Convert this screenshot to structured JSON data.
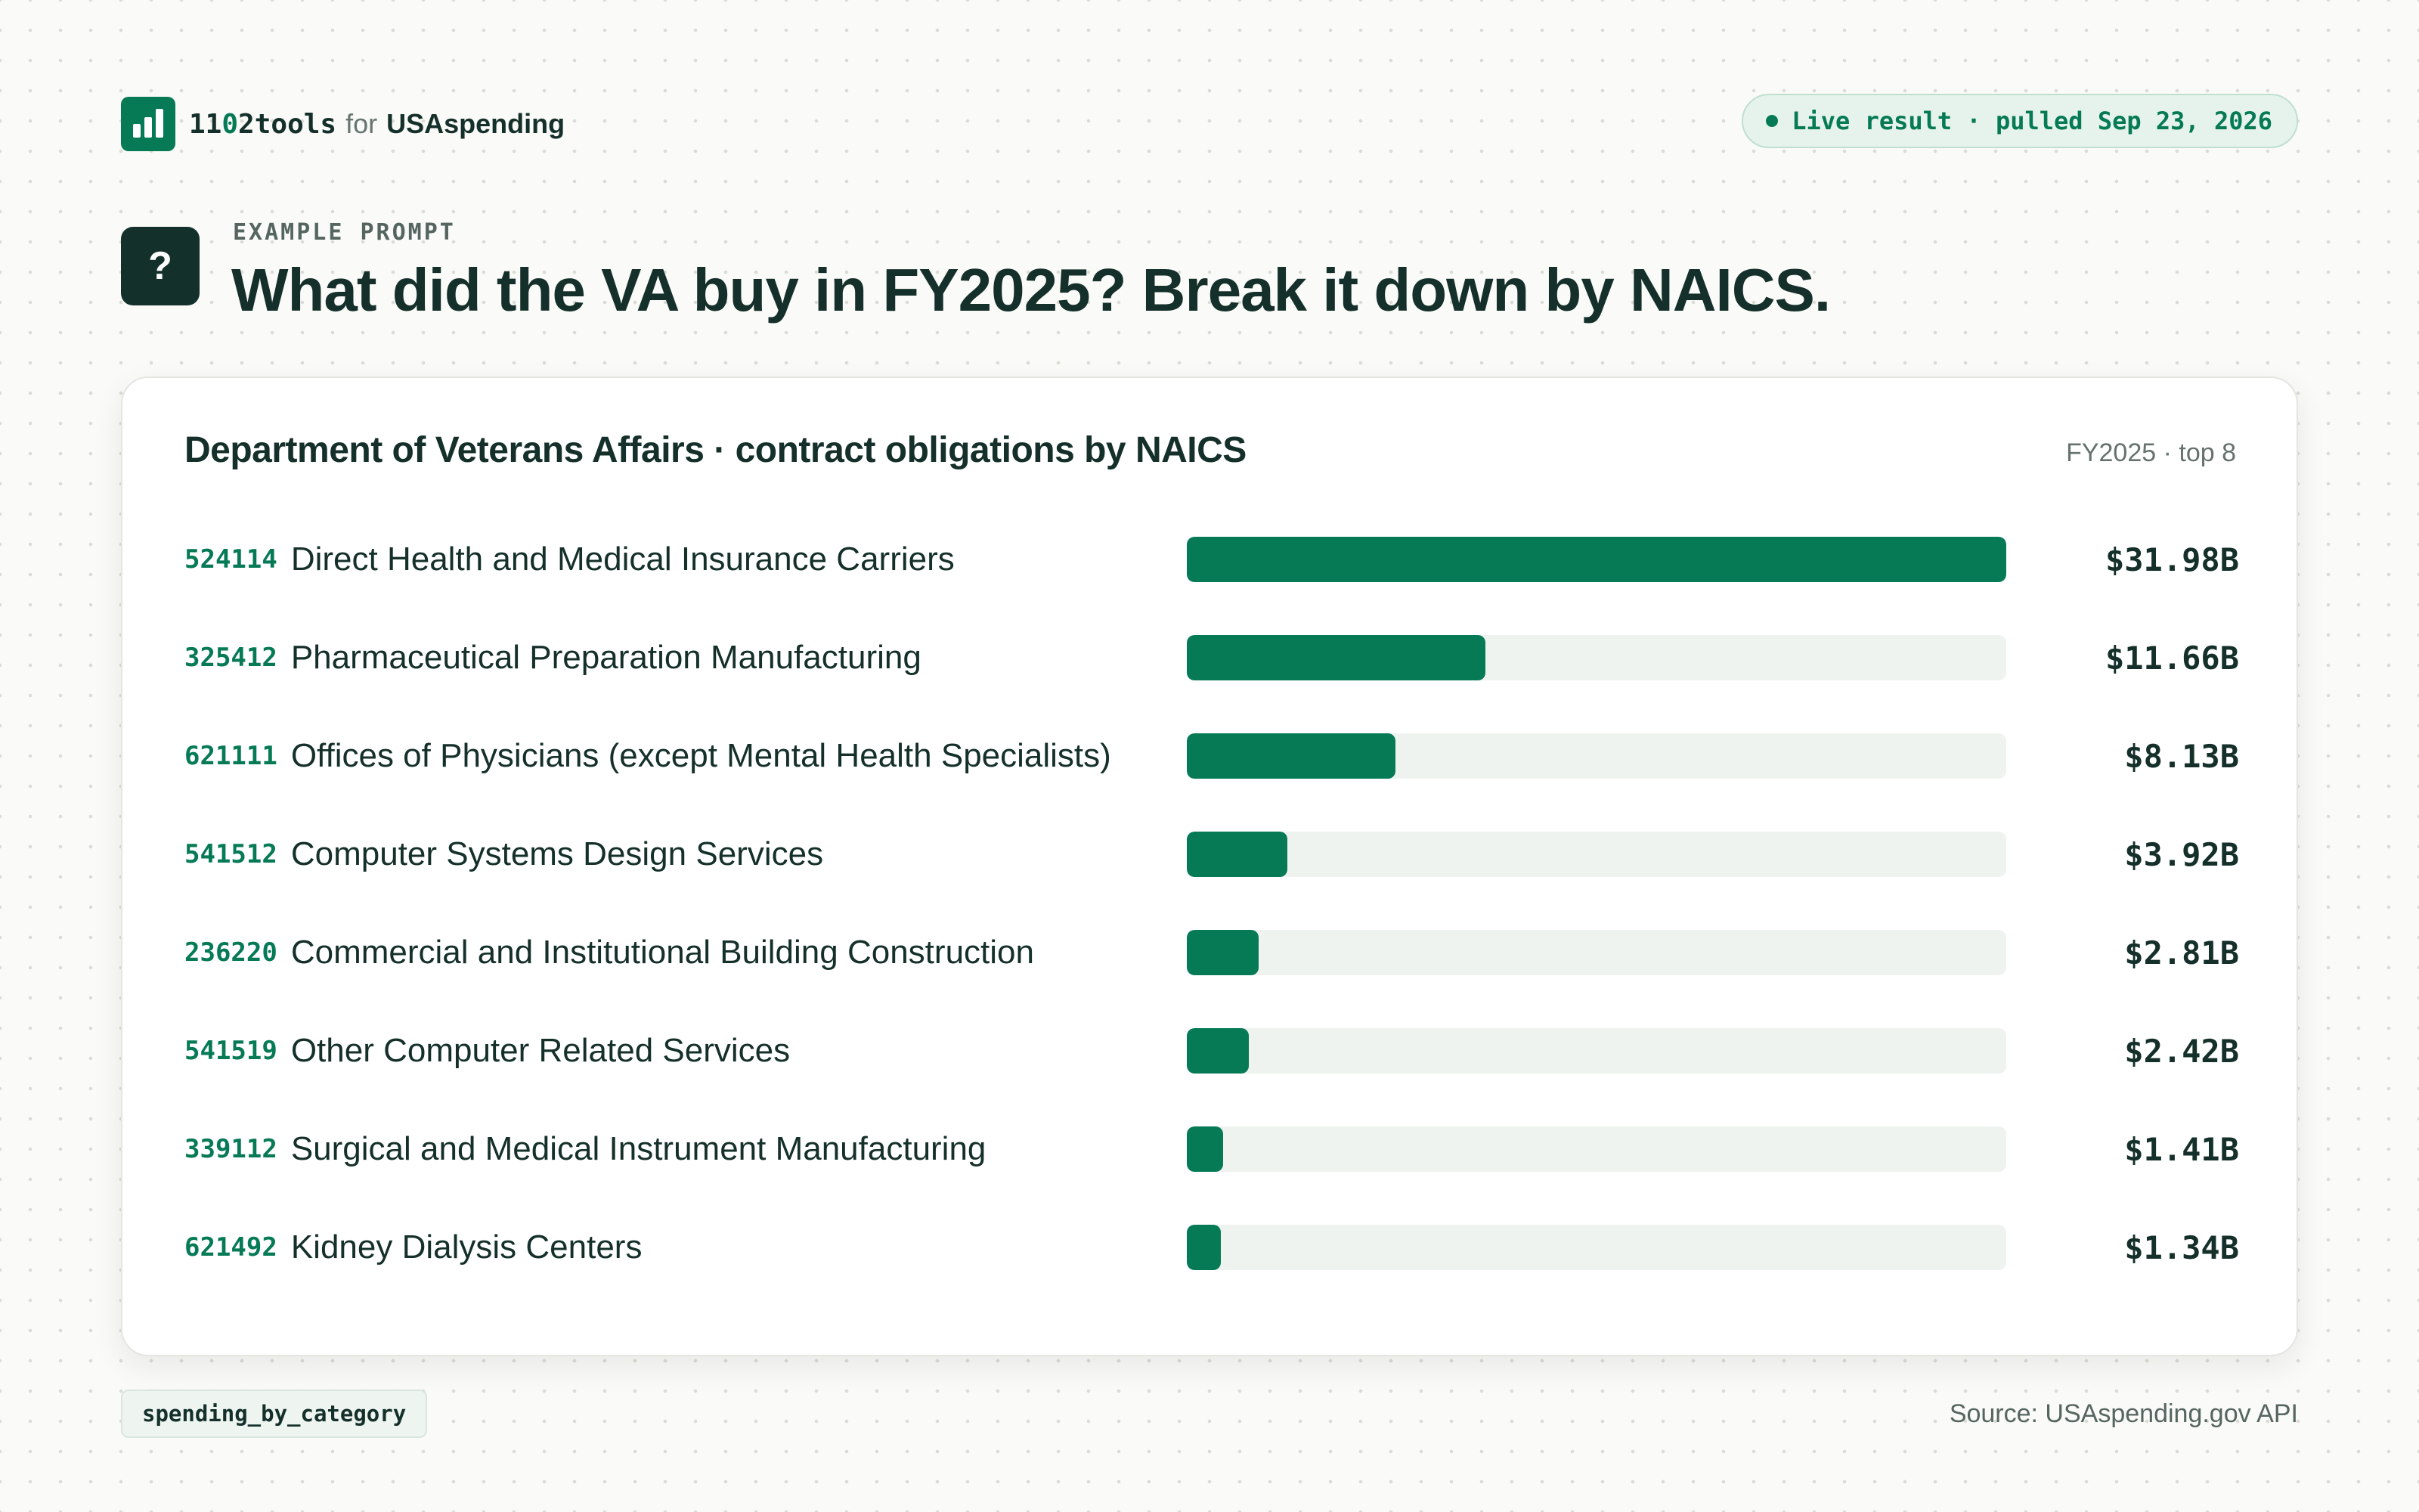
{
  "brand": {
    "name_prefix": "11",
    "name_zero": "0",
    "name_suffix": "2tools",
    "for_text": "for",
    "org": "USAspending"
  },
  "status": {
    "text": "Live result · pulled Sep 23, 2026",
    "color": "#057a55"
  },
  "prompt": {
    "icon_glyph": "?",
    "eyebrow": "EXAMPLE PROMPT",
    "question": "What did the VA buy in FY2025? Break it down by NAICS."
  },
  "card": {
    "title": "Department of Veterans Affairs · contract obligations by NAICS",
    "meta": "FY2025 · top 8"
  },
  "chart_data": {
    "type": "bar",
    "orientation": "horizontal",
    "title": "Department of Veterans Affairs · contract obligations by NAICS",
    "subtitle": "FY2025 · top 8",
    "unit": "USD billions",
    "xlim": [
      0,
      31.98
    ],
    "grid": false,
    "bar_color": "#057a55",
    "track_color": "#eff3f0",
    "rows": [
      {
        "code": "524114",
        "name": "Direct Health and Medical Insurance Carriers",
        "value": 31.98,
        "label": "$31.98B"
      },
      {
        "code": "325412",
        "name": "Pharmaceutical Preparation Manufacturing",
        "value": 11.66,
        "label": "$11.66B"
      },
      {
        "code": "621111",
        "name": "Offices of Physicians (except Mental Health Specialists)",
        "value": 8.13,
        "label": "$8.13B"
      },
      {
        "code": "541512",
        "name": "Computer Systems Design Services",
        "value": 3.92,
        "label": "$3.92B"
      },
      {
        "code": "236220",
        "name": "Commercial and Institutional Building Construction",
        "value": 2.81,
        "label": "$2.81B"
      },
      {
        "code": "541519",
        "name": "Other Computer Related Services",
        "value": 2.42,
        "label": "$2.42B"
      },
      {
        "code": "339112",
        "name": "Surgical and Medical Instrument Manufacturing",
        "value": 1.41,
        "label": "$1.41B"
      },
      {
        "code": "621492",
        "name": "Kidney Dialysis Centers",
        "value": 1.34,
        "label": "$1.34B"
      }
    ]
  },
  "footer": {
    "endpoint": "spending_by_category",
    "source": "Source: USAspending.gov API"
  }
}
